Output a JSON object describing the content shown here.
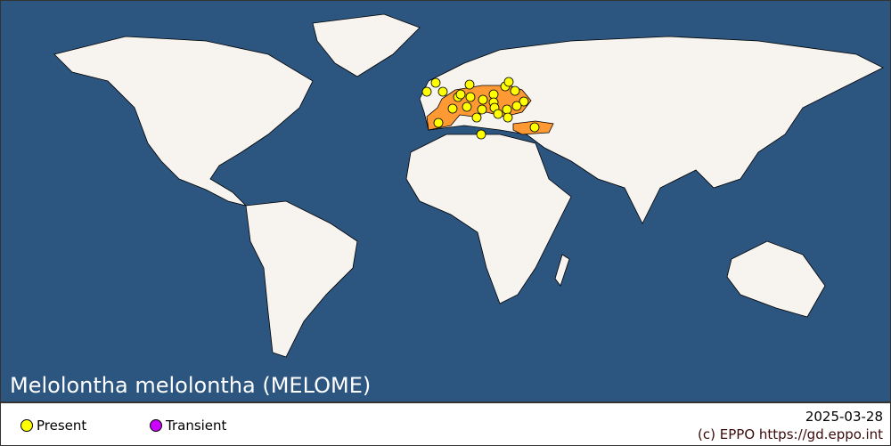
{
  "title": "Melolontha melolontha (MELOME)",
  "legend": {
    "items": [
      {
        "label": "Present",
        "color": "#ffff00"
      },
      {
        "label": "Transient",
        "color": "#cc00ff"
      }
    ]
  },
  "date": "2025-03-28",
  "copyright": "(c) EPPO https://gd.eppo.int",
  "colors": {
    "ocean": "#2c5580",
    "land": "#f7f4f0",
    "present_region": "#ff9933",
    "present_point": "#ffff00"
  },
  "present_countries_shaded": [
    "Portugal",
    "Spain",
    "France",
    "Belgium",
    "Netherlands",
    "Germany",
    "Switzerland",
    "Austria",
    "Italy",
    "Czechia",
    "Poland",
    "Hungary",
    "Romania",
    "Ukraine",
    "Turkey",
    "Denmark",
    "Slovakia",
    "Serbia",
    "Croatia",
    "Slovenia",
    "Bulgaria",
    "Moldova",
    "Belarus"
  ]
}
